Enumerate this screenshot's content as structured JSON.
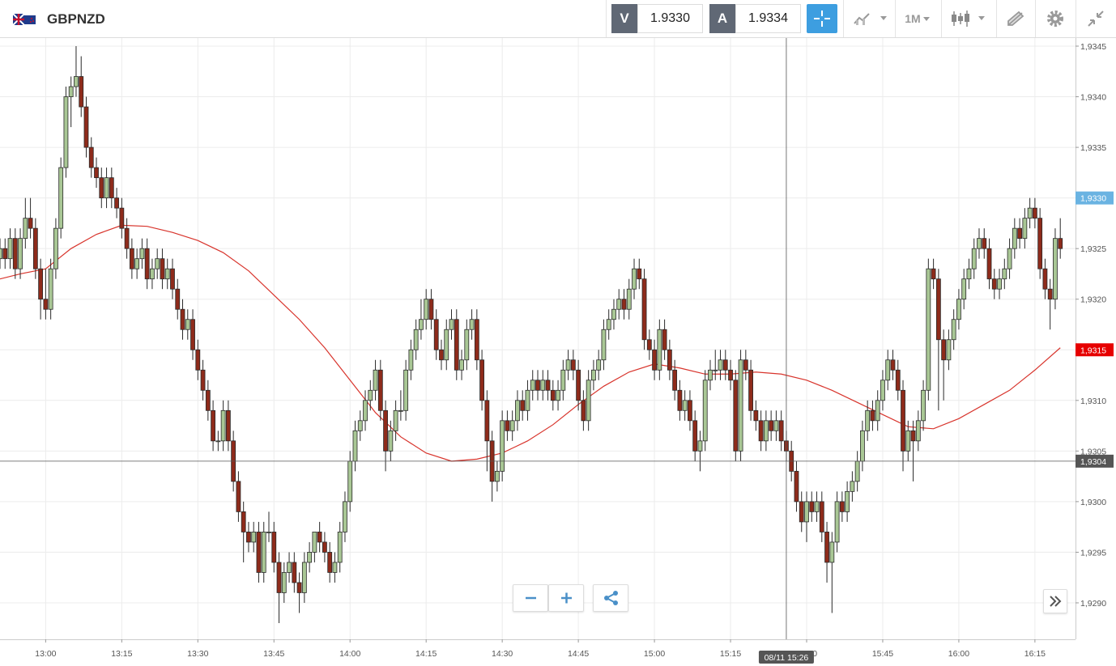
{
  "toolbar": {
    "symbol": "GBPNZD",
    "sell_label": "V",
    "sell_price": "1.9330",
    "buy_label": "A",
    "buy_price": "1.9334",
    "interval": "1M"
  },
  "chart_data": {
    "type": "candlestick",
    "x": [
      "12:51",
      "12:52",
      "12:53",
      "12:54",
      "12:55",
      "12:56",
      "12:57",
      "12:58",
      "12:59",
      "13:00",
      "13:01",
      "13:02",
      "13:03",
      "13:04",
      "13:05",
      "13:06",
      "13:07",
      "13:08",
      "13:09",
      "13:10",
      "13:11",
      "13:12",
      "13:13",
      "13:14",
      "13:15",
      "13:16",
      "13:17",
      "13:18",
      "13:19",
      "13:20",
      "13:21",
      "13:22",
      "13:23",
      "13:24",
      "13:25",
      "13:26",
      "13:27",
      "13:28",
      "13:29",
      "13:30",
      "13:31",
      "13:32",
      "13:33",
      "13:34",
      "13:35",
      "13:36",
      "13:37",
      "13:38",
      "13:39",
      "13:40",
      "13:41",
      "13:42",
      "13:43",
      "13:44",
      "13:45",
      "13:46",
      "13:47",
      "13:48",
      "13:49",
      "13:50",
      "13:51",
      "13:52",
      "13:53",
      "13:54",
      "13:55",
      "13:56",
      "13:57",
      "13:58",
      "13:59",
      "14:00",
      "14:01",
      "14:02",
      "14:03",
      "14:04",
      "14:05",
      "14:06",
      "14:07",
      "14:08",
      "14:09",
      "14:10",
      "14:11",
      "14:12",
      "14:13",
      "14:14",
      "14:15",
      "14:16",
      "14:17",
      "14:18",
      "14:19",
      "14:20",
      "14:21",
      "14:22",
      "14:23",
      "14:24",
      "14:25",
      "14:26",
      "14:27",
      "14:28",
      "14:29",
      "14:30",
      "14:31",
      "14:32",
      "14:33",
      "14:34",
      "14:35",
      "14:36",
      "14:37",
      "14:38",
      "14:39",
      "14:40",
      "14:41",
      "14:42",
      "14:43",
      "14:44",
      "14:45",
      "14:46",
      "14:47",
      "14:48",
      "14:49",
      "14:50",
      "14:51",
      "14:52",
      "14:53",
      "14:54",
      "14:55",
      "14:56",
      "14:57",
      "14:58",
      "14:59",
      "15:00",
      "15:01",
      "15:02",
      "15:03",
      "15:04",
      "15:05",
      "15:06",
      "15:07",
      "15:08",
      "15:09",
      "15:10",
      "15:11",
      "15:12",
      "15:13",
      "15:14",
      "15:15",
      "15:16",
      "15:17",
      "15:18",
      "15:19",
      "15:20",
      "15:21",
      "15:22",
      "15:23",
      "15:24",
      "15:25",
      "15:26",
      "15:27",
      "15:28",
      "15:29",
      "15:30",
      "15:31",
      "15:32",
      "15:33",
      "15:34",
      "15:35",
      "15:36",
      "15:37",
      "15:38",
      "15:39",
      "15:40",
      "15:41",
      "15:42",
      "15:43",
      "15:44",
      "15:45",
      "15:46",
      "15:47",
      "15:48",
      "15:49",
      "15:50",
      "15:51",
      "15:52",
      "15:53",
      "15:54",
      "15:55",
      "15:56",
      "15:57",
      "15:58",
      "15:59",
      "16:00",
      "16:01",
      "16:02",
      "16:03",
      "16:04",
      "16:05",
      "16:06",
      "16:07",
      "16:08",
      "16:09",
      "16:10",
      "16:11",
      "16:12",
      "16:13",
      "16:14",
      "16:15",
      "16:16",
      "16:17",
      "16:18",
      "16:19",
      "16:20"
    ],
    "open": [
      1.9324,
      1.9325,
      1.9324,
      1.9326,
      1.9323,
      1.9326,
      1.9328,
      1.9327,
      1.9323,
      1.932,
      1.9319,
      1.9323,
      1.9327,
      1.9333,
      1.934,
      1.9341,
      1.9342,
      1.9339,
      1.9335,
      1.9333,
      1.9332,
      1.933,
      1.9332,
      1.933,
      1.9329,
      1.9327,
      1.9325,
      1.9323,
      1.9324,
      1.9325,
      1.9322,
      1.9323,
      1.9324,
      1.9322,
      1.9323,
      1.9321,
      1.9319,
      1.9317,
      1.9318,
      1.9315,
      1.9313,
      1.9311,
      1.9309,
      1.9306,
      1.9306,
      1.9309,
      1.9306,
      1.9302,
      1.9299,
      1.9297,
      1.9296,
      1.9297,
      1.9293,
      1.9297,
      1.9297,
      1.9294,
      1.9291,
      1.9293,
      1.9294,
      1.9292,
      1.9291,
      1.9294,
      1.9295,
      1.9297,
      1.9296,
      1.9295,
      1.9293,
      1.9294,
      1.9297,
      1.93,
      1.9304,
      1.9307,
      1.9308,
      1.931,
      1.9311,
      1.9313,
      1.9309,
      1.9305,
      1.9307,
      1.9309,
      1.9309,
      1.9313,
      1.9315,
      1.9317,
      1.9318,
      1.932,
      1.9318,
      1.9315,
      1.9314,
      1.9317,
      1.9318,
      1.9313,
      1.9314,
      1.9317,
      1.9318,
      1.9314,
      1.931,
      1.9306,
      1.9302,
      1.9303,
      1.9308,
      1.9307,
      1.9308,
      1.931,
      1.9309,
      1.9311,
      1.9312,
      1.9311,
      1.9312,
      1.9311,
      1.931,
      1.9311,
      1.9313,
      1.9314,
      1.9313,
      1.931,
      1.9308,
      1.9312,
      1.9313,
      1.9314,
      1.9317,
      1.9318,
      1.9319,
      1.932,
      1.9319,
      1.9321,
      1.9323,
      1.9322,
      1.9316,
      1.9315,
      1.9313,
      1.9317,
      1.9315,
      1.9313,
      1.9311,
      1.9309,
      1.931,
      1.9308,
      1.9305,
      1.9306,
      1.9312,
      1.9313,
      1.9313,
      1.9314,
      1.9313,
      1.9312,
      1.9305,
      1.9314,
      1.9313,
      1.9309,
      1.9308,
      1.9306,
      1.9308,
      1.9307,
      1.9308,
      1.9306,
      1.9305,
      1.9303,
      1.93,
      1.9298,
      1.93,
      1.9299,
      1.93,
      1.9297,
      1.9294,
      1.9296,
      1.93,
      1.9299,
      1.9301,
      1.9302,
      1.9304,
      1.9307,
      1.9309,
      1.9308,
      1.931,
      1.9312,
      1.9314,
      1.9313,
      1.9311,
      1.9305,
      1.9307,
      1.9306,
      1.9308,
      1.9311,
      1.9323,
      1.9322,
      1.9316,
      1.9314,
      1.9316,
      1.9318,
      1.932,
      1.9322,
      1.9323,
      1.9325,
      1.9326,
      1.9325,
      1.9322,
      1.9321,
      1.9322,
      1.9323,
      1.9325,
      1.9327,
      1.9326,
      1.9328,
      1.9329,
      1.9328,
      1.9323,
      1.9321,
      1.932,
      1.9326
    ],
    "high": [
      1.9326,
      1.9326,
      1.9327,
      1.9327,
      1.9327,
      1.933,
      1.933,
      1.9328,
      1.9324,
      1.9323,
      1.9324,
      1.9328,
      1.9334,
      1.9341,
      1.9342,
      1.9345,
      1.9344,
      1.934,
      1.9336,
      1.9334,
      1.9333,
      1.9333,
      1.9333,
      1.9331,
      1.933,
      1.9328,
      1.9326,
      1.9325,
      1.9326,
      1.9326,
      1.9324,
      1.9325,
      1.9325,
      1.9324,
      1.9324,
      1.9322,
      1.932,
      1.9319,
      1.9319,
      1.9316,
      1.9314,
      1.9312,
      1.931,
      1.9307,
      1.931,
      1.931,
      1.9307,
      1.9303,
      1.93,
      1.9298,
      1.9298,
      1.9298,
      1.9298,
      1.9299,
      1.9298,
      1.9295,
      1.9294,
      1.9295,
      1.9295,
      1.9293,
      1.9295,
      1.9296,
      1.9297,
      1.9298,
      1.9297,
      1.9296,
      1.9295,
      1.9298,
      1.9301,
      1.9305,
      1.9308,
      1.9309,
      1.9311,
      1.9312,
      1.9314,
      1.9314,
      1.931,
      1.9308,
      1.931,
      1.9311,
      1.9314,
      1.9316,
      1.9318,
      1.932,
      1.9321,
      1.9321,
      1.9319,
      1.9316,
      1.9318,
      1.9319,
      1.9319,
      1.9315,
      1.9318,
      1.9319,
      1.9319,
      1.9315,
      1.9311,
      1.9307,
      1.9304,
      1.9309,
      1.9309,
      1.9309,
      1.9311,
      1.9311,
      1.9312,
      1.9313,
      1.9313,
      1.9313,
      1.9313,
      1.9312,
      1.9312,
      1.9314,
      1.9315,
      1.9315,
      1.9314,
      1.9311,
      1.9313,
      1.9314,
      1.9315,
      1.9318,
      1.9319,
      1.932,
      1.9321,
      1.9321,
      1.9322,
      1.9324,
      1.9324,
      1.9323,
      1.9317,
      1.9316,
      1.9318,
      1.9318,
      1.9316,
      1.9314,
      1.9312,
      1.9311,
      1.9311,
      1.9309,
      1.9307,
      1.9313,
      1.9314,
      1.9315,
      1.9315,
      1.9315,
      1.9314,
      1.9313,
      1.9315,
      1.9315,
      1.9314,
      1.931,
      1.9309,
      1.9309,
      1.9309,
      1.9309,
      1.9309,
      1.9307,
      1.9306,
      1.9304,
      1.9301,
      1.9301,
      1.9301,
      1.9301,
      1.9301,
      1.9298,
      1.9297,
      1.9301,
      1.9301,
      1.9302,
      1.9303,
      1.9305,
      1.9308,
      1.931,
      1.931,
      1.9311,
      1.9313,
      1.9315,
      1.9315,
      1.9314,
      1.9312,
      1.9308,
      1.9308,
      1.9309,
      1.9312,
      1.9324,
      1.9324,
      1.9323,
      1.9317,
      1.9317,
      1.9319,
      1.9321,
      1.9323,
      1.9324,
      1.9326,
      1.9327,
      1.9327,
      1.9326,
      1.9323,
      1.9323,
      1.9324,
      1.9326,
      1.9328,
      1.9328,
      1.9329,
      1.933,
      1.933,
      1.9329,
      1.9324,
      1.9322,
      1.9327,
      1.9328
    ],
    "low": [
      1.9323,
      1.9323,
      1.9323,
      1.9322,
      1.9322,
      1.9325,
      1.9326,
      1.9322,
      1.9318,
      1.9318,
      1.9318,
      1.9322,
      1.9326,
      1.9332,
      1.9337,
      1.934,
      1.9338,
      1.9334,
      1.9332,
      1.9331,
      1.9329,
      1.9329,
      1.9329,
      1.9328,
      1.9326,
      1.9324,
      1.9322,
      1.9322,
      1.9323,
      1.9321,
      1.9321,
      1.9322,
      1.9321,
      1.9321,
      1.932,
      1.9318,
      1.9316,
      1.9316,
      1.9314,
      1.9312,
      1.931,
      1.9308,
      1.9305,
      1.9305,
      1.9305,
      1.9305,
      1.9301,
      1.9298,
      1.9294,
      1.9295,
      1.9295,
      1.9292,
      1.9292,
      1.9296,
      1.9293,
      1.9288,
      1.929,
      1.9292,
      1.9291,
      1.9289,
      1.929,
      1.9293,
      1.9294,
      1.9295,
      1.9294,
      1.9292,
      1.9292,
      1.9293,
      1.9296,
      1.9299,
      1.9303,
      1.9306,
      1.9307,
      1.9309,
      1.931,
      1.9308,
      1.9303,
      1.9304,
      1.9306,
      1.9308,
      1.9308,
      1.9312,
      1.9314,
      1.9316,
      1.9317,
      1.9317,
      1.9314,
      1.9313,
      1.9313,
      1.9316,
      1.9312,
      1.9312,
      1.9313,
      1.9316,
      1.9313,
      1.9309,
      1.9303,
      1.93,
      1.9301,
      1.9302,
      1.9306,
      1.9306,
      1.9307,
      1.9308,
      1.9308,
      1.931,
      1.931,
      1.931,
      1.931,
      1.9309,
      1.9309,
      1.931,
      1.9312,
      1.9312,
      1.9309,
      1.9307,
      1.9307,
      1.9311,
      1.9312,
      1.9313,
      1.9316,
      1.9317,
      1.9318,
      1.9318,
      1.9318,
      1.932,
      1.9321,
      1.9315,
      1.9314,
      1.9312,
      1.9312,
      1.9314,
      1.9312,
      1.931,
      1.9308,
      1.9308,
      1.9307,
      1.9304,
      1.9303,
      1.9305,
      1.9311,
      1.9312,
      1.9312,
      1.9312,
      1.9311,
      1.9304,
      1.9304,
      1.9312,
      1.9308,
      1.9307,
      1.9305,
      1.9305,
      1.9306,
      1.9306,
      1.9305,
      1.9304,
      1.9302,
      1.9299,
      1.9297,
      1.9296,
      1.9298,
      1.9298,
      1.9296,
      1.9292,
      1.9289,
      1.9295,
      1.9298,
      1.9298,
      1.93,
      1.9301,
      1.9303,
      1.9306,
      1.9307,
      1.9307,
      1.9309,
      1.9311,
      1.9312,
      1.931,
      1.9303,
      1.9304,
      1.9302,
      1.9305,
      1.9307,
      1.931,
      1.9321,
      1.9309,
      1.931,
      1.9313,
      1.9315,
      1.9317,
      1.9319,
      1.9321,
      1.9322,
      1.9324,
      1.9324,
      1.9321,
      1.932,
      1.932,
      1.9321,
      1.9322,
      1.9324,
      1.9325,
      1.9325,
      1.9327,
      1.9327,
      1.9322,
      1.932,
      1.9317,
      1.9319,
      1.9324
    ],
    "close": [
      1.9325,
      1.9324,
      1.9326,
      1.9323,
      1.9326,
      1.9328,
      1.9327,
      1.9323,
      1.932,
      1.9319,
      1.9323,
      1.9327,
      1.9333,
      1.934,
      1.9341,
      1.9342,
      1.9339,
      1.9335,
      1.9333,
      1.9332,
      1.933,
      1.9332,
      1.933,
      1.9329,
      1.9327,
      1.9325,
      1.9323,
      1.9324,
      1.9325,
      1.9322,
      1.9323,
      1.9324,
      1.9322,
      1.9323,
      1.9321,
      1.9319,
      1.9317,
      1.9318,
      1.9315,
      1.9313,
      1.9311,
      1.9309,
      1.9306,
      1.9306,
      1.9309,
      1.9306,
      1.9302,
      1.9299,
      1.9297,
      1.9296,
      1.9297,
      1.9293,
      1.9297,
      1.9297,
      1.9294,
      1.9291,
      1.9293,
      1.9294,
      1.9292,
      1.9291,
      1.9294,
      1.9295,
      1.9297,
      1.9296,
      1.9295,
      1.9293,
      1.9294,
      1.9297,
      1.93,
      1.9304,
      1.9307,
      1.9308,
      1.931,
      1.9311,
      1.9313,
      1.9309,
      1.9305,
      1.9307,
      1.9309,
      1.9309,
      1.9313,
      1.9315,
      1.9317,
      1.9318,
      1.932,
      1.9318,
      1.9315,
      1.9314,
      1.9317,
      1.9318,
      1.9313,
      1.9314,
      1.9317,
      1.9318,
      1.9314,
      1.931,
      1.9306,
      1.9302,
      1.9303,
      1.9308,
      1.9307,
      1.9308,
      1.931,
      1.9309,
      1.9311,
      1.9312,
      1.9311,
      1.9312,
      1.9311,
      1.931,
      1.9311,
      1.9313,
      1.9314,
      1.9313,
      1.931,
      1.9308,
      1.9312,
      1.9313,
      1.9314,
      1.9317,
      1.9318,
      1.9319,
      1.932,
      1.9319,
      1.9321,
      1.9323,
      1.9322,
      1.9316,
      1.9315,
      1.9313,
      1.9317,
      1.9315,
      1.9313,
      1.9311,
      1.9309,
      1.931,
      1.9308,
      1.9305,
      1.9306,
      1.9312,
      1.9313,
      1.9313,
      1.9314,
      1.9313,
      1.9312,
      1.9305,
      1.9314,
      1.9313,
      1.9309,
      1.9308,
      1.9306,
      1.9308,
      1.9307,
      1.9308,
      1.9306,
      1.9305,
      1.9303,
      1.93,
      1.9298,
      1.93,
      1.9299,
      1.93,
      1.9297,
      1.9294,
      1.9296,
      1.93,
      1.9299,
      1.9301,
      1.9302,
      1.9304,
      1.9307,
      1.9309,
      1.9308,
      1.931,
      1.9312,
      1.9314,
      1.9313,
      1.9311,
      1.9305,
      1.9307,
      1.9306,
      1.9308,
      1.9311,
      1.9323,
      1.9322,
      1.9316,
      1.9314,
      1.9316,
      1.9318,
      1.932,
      1.9322,
      1.9323,
      1.9325,
      1.9326,
      1.9325,
      1.9322,
      1.9321,
      1.9322,
      1.9323,
      1.9325,
      1.9327,
      1.9326,
      1.9328,
      1.9329,
      1.9328,
      1.9323,
      1.9321,
      1.932,
      1.9326,
      1.9325
    ],
    "up_color": "#a9c795",
    "down_color": "#8e2b1b",
    "xlim": [
      "12:51",
      "16:23"
    ],
    "xticks": [
      "13:00",
      "13:15",
      "13:30",
      "13:45",
      "14:00",
      "14:15",
      "14:30",
      "14:45",
      "15:00",
      "15:15",
      "15:30",
      "15:45",
      "16:00",
      "16:15"
    ],
    "ylim": [
      1.92864,
      1.93458
    ],
    "yticks": [
      {
        "value": 1.929,
        "label": "1,9290"
      },
      {
        "value": 1.9295,
        "label": "1,9295"
      },
      {
        "value": 1.93,
        "label": "1,9300"
      },
      {
        "value": 1.9305,
        "label": "1,9305"
      },
      {
        "value": 1.931,
        "label": "1,9310"
      },
      {
        "value": 1.9315,
        "label": "1,9315"
      },
      {
        "value": 1.932,
        "label": "1,9320"
      },
      {
        "value": 1.9325,
        "label": "1,9325"
      },
      {
        "value": 1.933,
        "label": "1,9330"
      },
      {
        "value": 1.9335,
        "label": "1,9335"
      },
      {
        "value": 1.934,
        "label": "1,9340"
      },
      {
        "value": 1.9345,
        "label": "1,9345"
      }
    ],
    "grid": true,
    "moving_average": {
      "color": "#d8342c",
      "x": [
        "12:51",
        "12:55",
        "13:00",
        "13:05",
        "13:10",
        "13:15",
        "13:20",
        "13:25",
        "13:30",
        "13:35",
        "13:40",
        "13:45",
        "13:50",
        "13:55",
        "14:00",
        "14:05",
        "14:10",
        "14:15",
        "14:20",
        "14:25",
        "14:30",
        "14:35",
        "14:40",
        "14:45",
        "14:50",
        "14:55",
        "15:00",
        "15:05",
        "15:10",
        "15:15",
        "15:20",
        "15:25",
        "15:30",
        "15:35",
        "15:40",
        "15:45",
        "15:50",
        "15:55",
        "16:00",
        "16:05",
        "16:10",
        "16:15",
        "16:20"
      ],
      "values": [
        1.9322,
        1.93225,
        1.9323,
        1.9325,
        1.93264,
        1.93273,
        1.93272,
        1.93266,
        1.93258,
        1.93246,
        1.93228,
        1.93204,
        1.9318,
        1.93152,
        1.9312,
        1.93088,
        1.93064,
        1.93048,
        1.9304,
        1.93042,
        1.93048,
        1.9306,
        1.93076,
        1.93096,
        1.93114,
        1.93128,
        1.93136,
        1.93132,
        1.93126,
        1.93126,
        1.93128,
        1.93126,
        1.9312,
        1.9311,
        1.93098,
        1.93086,
        1.93074,
        1.93072,
        1.93082,
        1.93096,
        1.9311,
        1.9313,
        1.93152
      ]
    },
    "price_markers": [
      {
        "value": 1.933,
        "label": "1,9330",
        "color": "#6ab3e2"
      },
      {
        "value": 1.9315,
        "label": "1,9315",
        "color": "#e60000"
      }
    ],
    "crosshair": {
      "y": {
        "value": 1.9304,
        "label": "1,9304"
      },
      "x": {
        "value": "15:26",
        "label": "08/11 15:26"
      },
      "color": "#555555"
    }
  }
}
